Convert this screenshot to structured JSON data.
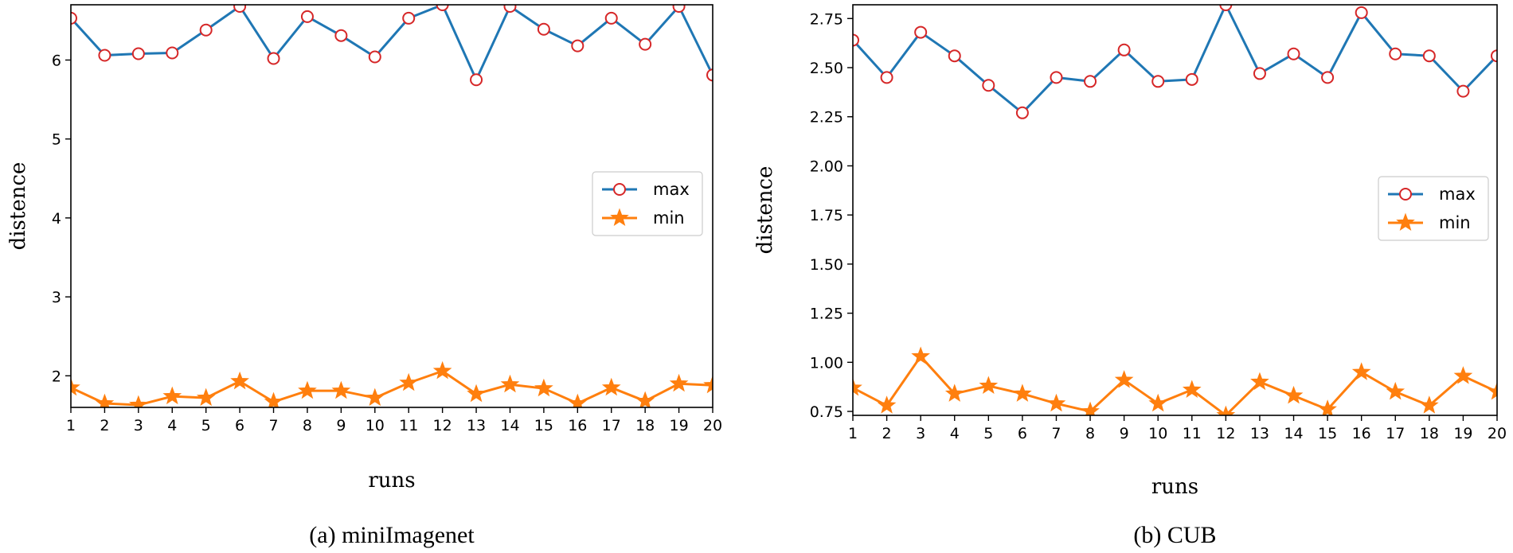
{
  "colors": {
    "max_line": "#1f77b4",
    "max_marker_edge": "#d62728",
    "min_line": "#ff7f0e",
    "axes": "#000000"
  },
  "chart_data": [
    {
      "type": "line",
      "caption": "(a) miniImagenet",
      "xlabel": "runs",
      "ylabel": "distence",
      "x": [
        1,
        2,
        3,
        4,
        5,
        6,
        7,
        8,
        9,
        10,
        11,
        12,
        13,
        14,
        15,
        16,
        17,
        18,
        19,
        20
      ],
      "xlim": [
        1,
        20
      ],
      "ylim": [
        1.6,
        6.7
      ],
      "yticks": [
        2,
        3,
        4,
        5,
        6
      ],
      "ytick_labels": [
        "2",
        "3",
        "4",
        "5",
        "6"
      ],
      "legend_position": "center-right",
      "grid": false,
      "series": [
        {
          "name": "max",
          "marker": "circle",
          "values": [
            6.53,
            6.06,
            6.08,
            6.09,
            6.38,
            6.68,
            6.02,
            6.55,
            6.31,
            6.04,
            6.53,
            6.7,
            5.75,
            6.68,
            6.39,
            6.18,
            6.53,
            6.2,
            6.68,
            5.81
          ]
        },
        {
          "name": "min",
          "marker": "star",
          "values": [
            1.85,
            1.65,
            1.63,
            1.74,
            1.72,
            1.93,
            1.67,
            1.81,
            1.81,
            1.72,
            1.91,
            2.06,
            1.77,
            1.89,
            1.84,
            1.65,
            1.85,
            1.68,
            1.9,
            1.88
          ]
        }
      ]
    },
    {
      "type": "line",
      "caption": "(b) CUB",
      "xlabel": "runs",
      "ylabel": "distence",
      "x": [
        1,
        2,
        3,
        4,
        5,
        6,
        7,
        8,
        9,
        10,
        11,
        12,
        13,
        14,
        15,
        16,
        17,
        18,
        19,
        20
      ],
      "xlim": [
        1,
        20
      ],
      "ylim": [
        0.73,
        2.82
      ],
      "yticks": [
        0.75,
        1.0,
        1.25,
        1.5,
        1.75,
        2.0,
        2.25,
        2.5,
        2.75
      ],
      "ytick_labels": [
        "0.75",
        "1.00",
        "1.25",
        "1.50",
        "1.75",
        "2.00",
        "2.25",
        "2.50",
        "2.75"
      ],
      "legend_position": "center-right",
      "grid": false,
      "series": [
        {
          "name": "max",
          "marker": "circle",
          "values": [
            2.64,
            2.45,
            2.68,
            2.56,
            2.41,
            2.27,
            2.45,
            2.43,
            2.59,
            2.43,
            2.44,
            2.82,
            2.47,
            2.57,
            2.45,
            2.78,
            2.57,
            2.56,
            2.38,
            2.56
          ]
        },
        {
          "name": "min",
          "marker": "star",
          "values": [
            0.87,
            0.78,
            1.03,
            0.84,
            0.88,
            0.84,
            0.79,
            0.75,
            0.91,
            0.79,
            0.86,
            0.73,
            0.9,
            0.83,
            0.76,
            0.95,
            0.85,
            0.78,
            0.93,
            0.85
          ]
        }
      ]
    }
  ]
}
